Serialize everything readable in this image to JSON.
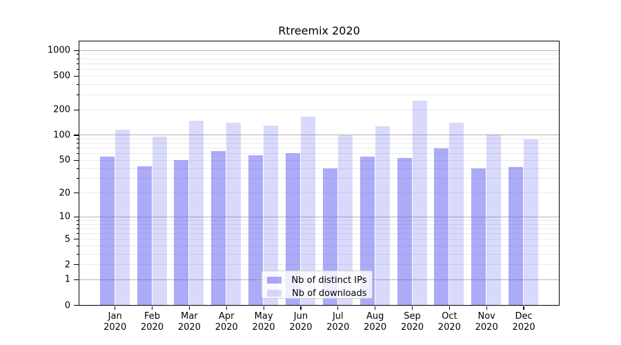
{
  "chart_data": {
    "type": "bar",
    "title": "Rtreemix 2020",
    "categories": [
      "Jan",
      "Feb",
      "Mar",
      "Apr",
      "May",
      "Jun",
      "Jul",
      "Aug",
      "Sep",
      "Oct",
      "Nov",
      "Dec"
    ],
    "category_year": "2020",
    "series": [
      {
        "name": "Nb of distinct IPs",
        "color": "rgba(102,102,240,0.55)",
        "values": [
          55,
          42,
          50,
          64,
          57,
          60,
          40,
          55,
          53,
          69,
          40,
          41
        ]
      },
      {
        "name": "Nb of downloads",
        "color": "rgba(102,102,240,0.25)",
        "values": [
          115,
          96,
          146,
          140,
          128,
          165,
          99,
          126,
          253,
          140,
          100,
          89
        ]
      }
    ],
    "yscale": "symlog",
    "y_ticks": [
      0,
      1,
      2,
      5,
      10,
      20,
      50,
      100,
      200,
      500,
      1000
    ],
    "ylim": [
      0,
      1270
    ],
    "grid": true,
    "legend_position": "lower center",
    "colors": {
      "major_grid": "#b2b2b2",
      "minor_grid": "#e9e9ef",
      "axis": "#000000",
      "legend_border": "#cccccc"
    }
  }
}
